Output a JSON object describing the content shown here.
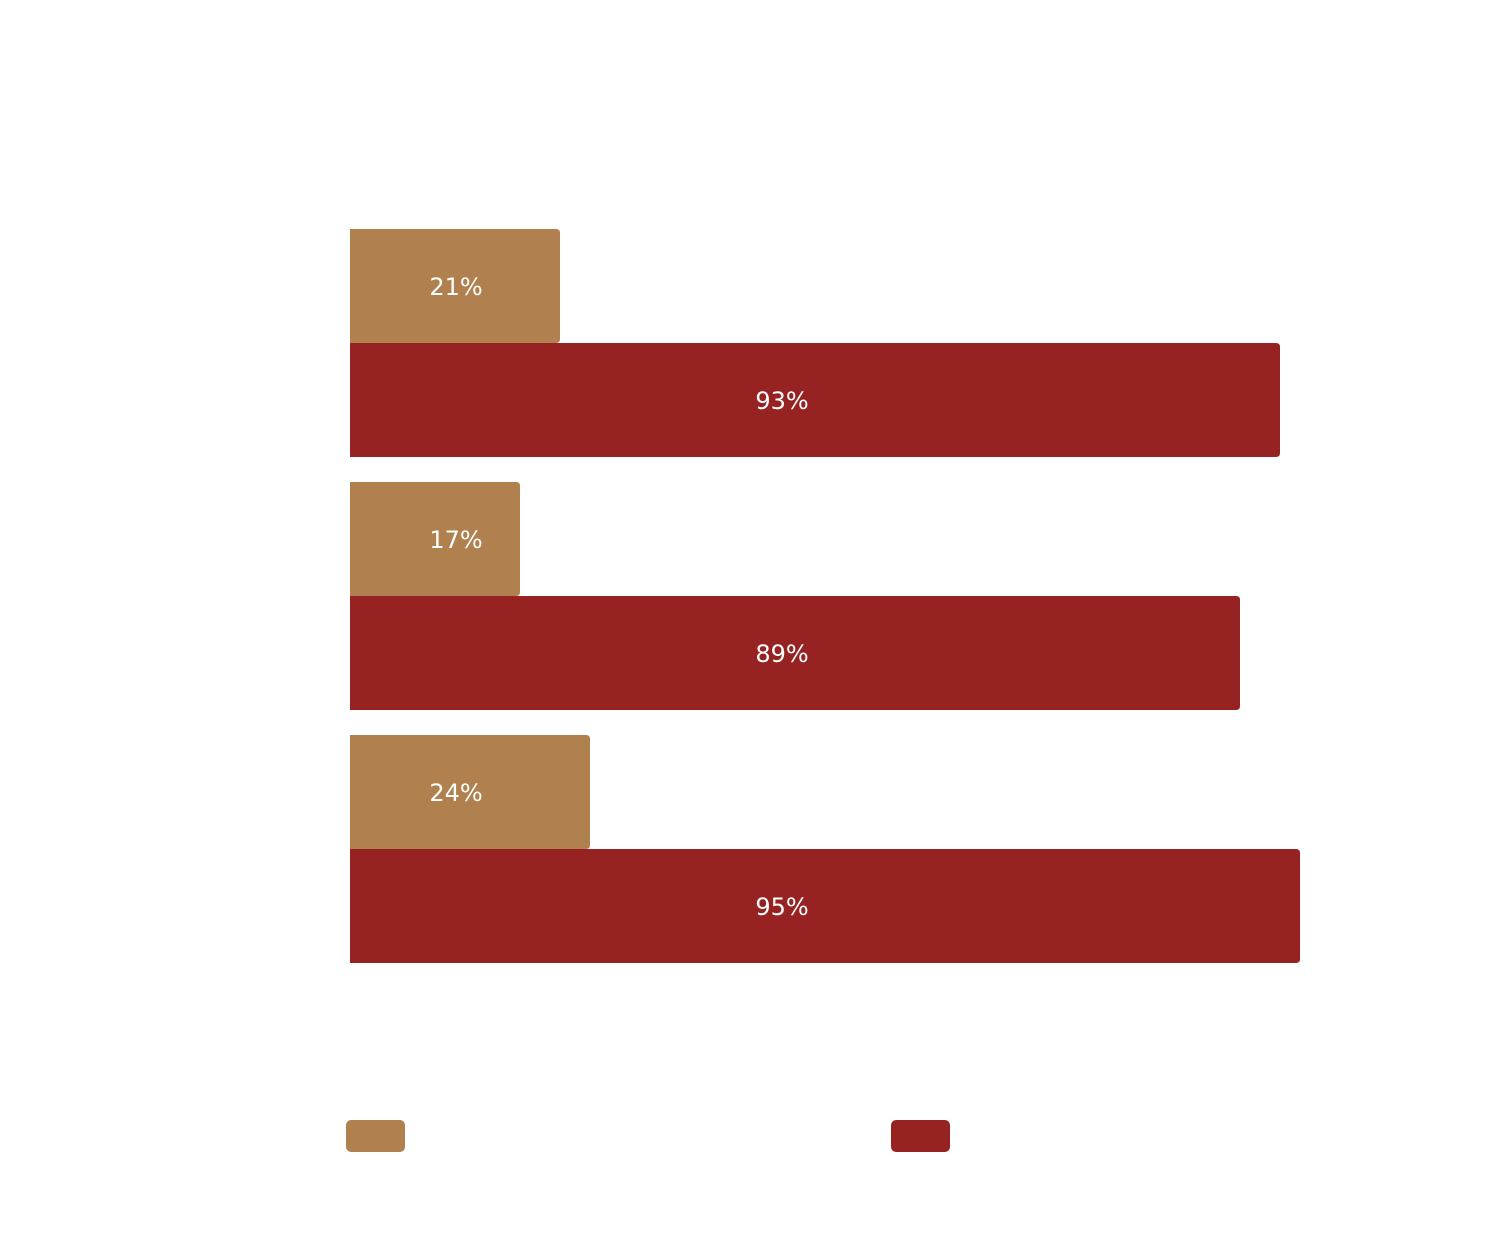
{
  "chart_data": {
    "type": "bar",
    "orientation": "horizontal",
    "categories": [
      null,
      null,
      null
    ],
    "series": [
      {
        "color": "#b0814e",
        "values": [
          21,
          17,
          24
        ],
        "value_labels": [
          "21%",
          "17%",
          "24%"
        ]
      },
      {
        "color": "#972222",
        "values": [
          93,
          89,
          95
        ],
        "value_labels": [
          "93%",
          "89%",
          "95%"
        ]
      }
    ]
  }
}
